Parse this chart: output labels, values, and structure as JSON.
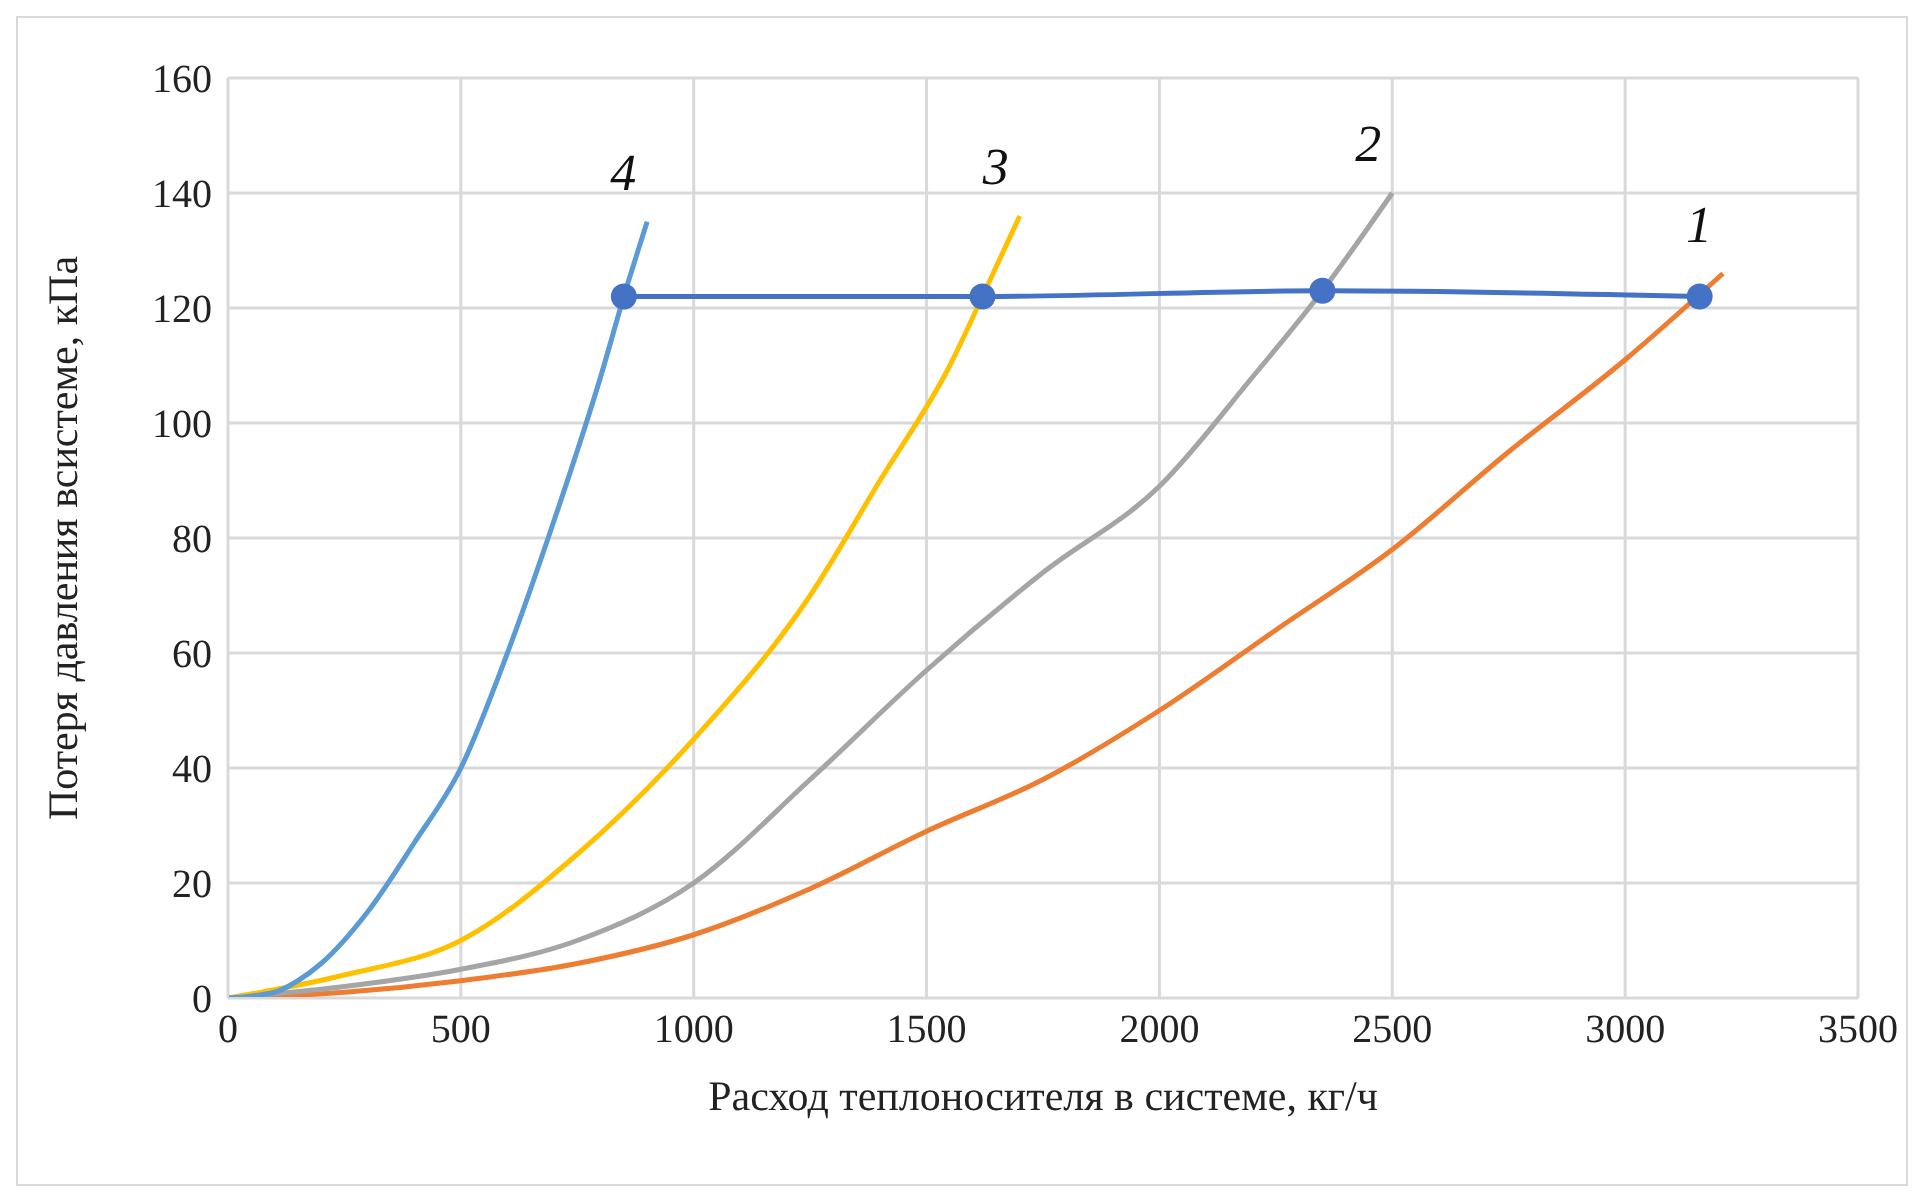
{
  "chart_data": {
    "type": "line",
    "xlabel": "Расход теплоносителя в системе, кг/ч",
    "ylabel": "Потеря давления всистеме, кПа",
    "xlim": [
      0,
      3500
    ],
    "ylim": [
      0,
      160
    ],
    "xticks": [
      0,
      500,
      1000,
      1500,
      2000,
      2500,
      3000,
      3500
    ],
    "yticks": [
      0,
      20,
      40,
      60,
      80,
      100,
      120,
      140,
      160
    ],
    "grid": true,
    "legend": false,
    "line_style": "solid",
    "series": [
      {
        "name": "1",
        "color": "#ed7d31",
        "marker": "none",
        "x": [
          0,
          250,
          500,
          750,
          1000,
          1250,
          1500,
          1750,
          2000,
          2250,
          2500,
          2750,
          3000,
          3210
        ],
        "values": [
          0,
          1,
          3,
          6,
          11,
          19,
          29,
          38,
          50,
          64,
          78,
          95,
          111,
          126
        ]
      },
      {
        "name": "2",
        "color": "#a5a5a5",
        "marker": "none",
        "x": [
          0,
          250,
          500,
          750,
          1000,
          1250,
          1500,
          1750,
          2000,
          2200,
          2350,
          2500
        ],
        "values": [
          0,
          2,
          5,
          10,
          20,
          38,
          57,
          74,
          89,
          108,
          123,
          140
        ]
      },
      {
        "name": "3",
        "color": "#ffc000",
        "marker": "none",
        "x": [
          0,
          250,
          500,
          750,
          1000,
          1250,
          1400,
          1550,
          1620,
          1700
        ],
        "values": [
          0,
          4,
          10,
          25,
          45,
          70,
          90,
          110,
          122,
          136
        ]
      },
      {
        "name": "4",
        "color": "#5b9bd5",
        "marker": "none",
        "x": [
          0,
          100,
          150,
          200,
          300,
          400,
          500,
          600,
          700,
          800,
          850,
          900
        ],
        "values": [
          0,
          1,
          3,
          6,
          15,
          27,
          40,
          60,
          83,
          108,
          122,
          135
        ]
      },
      {
        "color": "#4472c4",
        "marker": "circle",
        "x": [
          850,
          1620,
          2350,
          3160
        ],
        "values": [
          122,
          122,
          123,
          122
        ]
      }
    ]
  }
}
